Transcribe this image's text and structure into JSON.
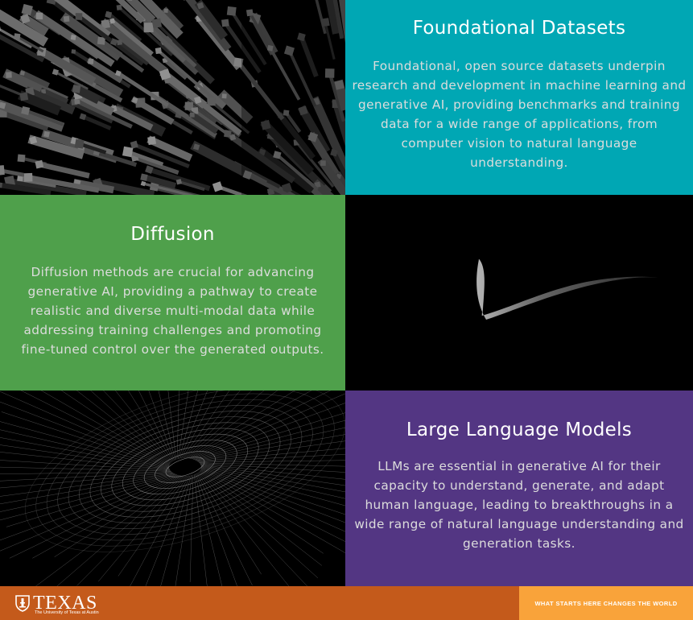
{
  "colors": {
    "teal": "#00a7b4",
    "green": "#4fa04b",
    "purple": "#533683",
    "burnt_orange": "#c45a1b",
    "orange": "#f9a33a",
    "title_text": "#ffffff",
    "body_text": "#dcdcdc"
  },
  "tiles": {
    "foundational": {
      "title": "Foundational Datasets",
      "body": "Foundational, open source datasets underpin research and development in machine learning and generative AI, providing benchmarks and training data for a wide range of applications, from computer vision to natural language understanding."
    },
    "diffusion": {
      "title": "Diffusion",
      "body": "Diffusion methods are crucial for advancing generative AI, providing a pathway to create realistic and diverse multi-modal data while addressing training challenges and promoting fine-tuned control over the generated outputs."
    },
    "llm": {
      "title": "Large Language Models",
      "body": "LLMs are essential in generative AI for their capacity to understand, generate, and adapt human language, leading to breakthroughs in a wide range of natural language understanding and generation tasks."
    }
  },
  "images": {
    "bars": "abstract-3d-bars-icon",
    "ribbon": "abstract-ribbon-icon",
    "lines": "abstract-line-mesh-icon"
  },
  "footer": {
    "logo_word": "TEXAS",
    "logo_sub": "The University of Texas at Austin",
    "tagline": "WHAT STARTS HERE CHANGES THE WORLD"
  }
}
